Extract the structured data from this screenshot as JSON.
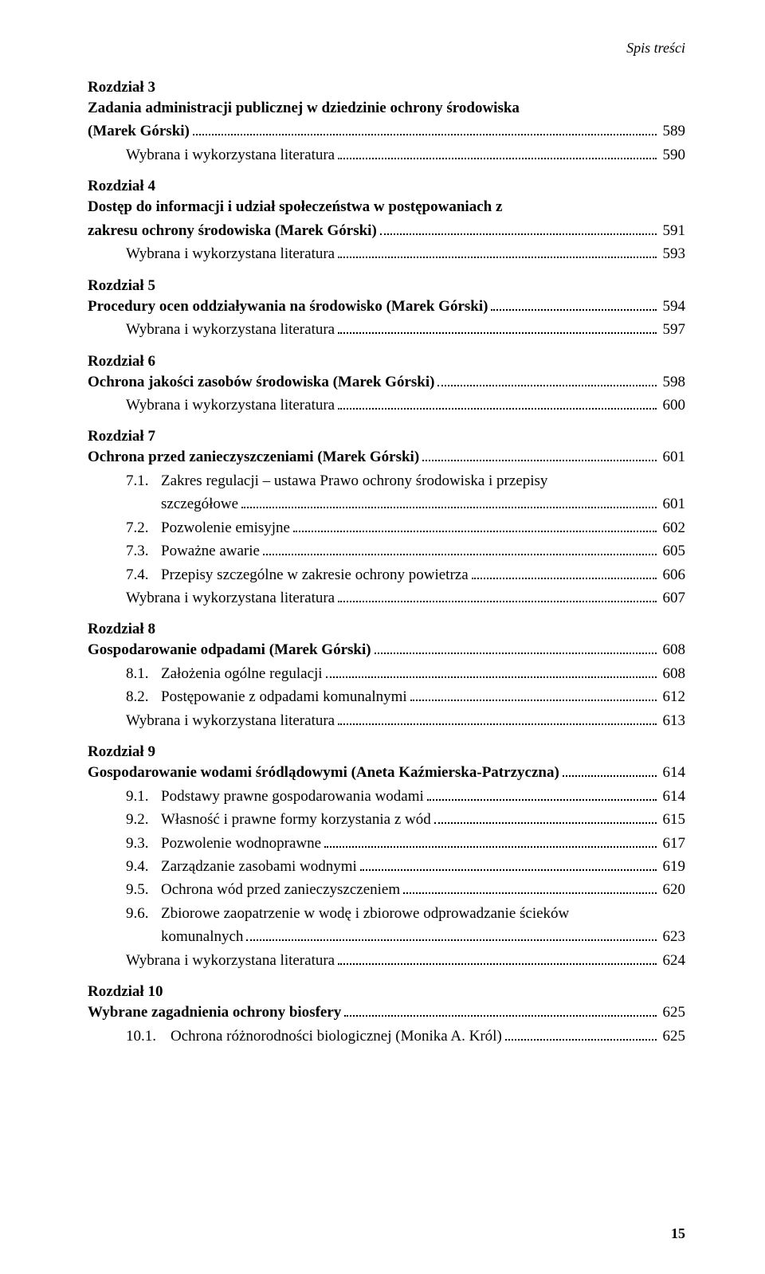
{
  "header": "Spis treści",
  "pageNumber": "15",
  "sections": [
    {
      "chapter": "Rozdział 3",
      "title": "Zadania administracji publicznej w dziedzinie ochrony środowiska (Marek Górski)",
      "titlePage": "589",
      "literature": "Wybrana i wykorzystana literatura",
      "literaturePage": "590"
    },
    {
      "chapter": "Rozdział 4",
      "title": "Dostęp do informacji i udział społeczeństwa w postępowaniach z zakresu ochrony środowiska (Marek Górski)",
      "titlePage": "591",
      "literature": "Wybrana i wykorzystana literatura",
      "literaturePage": "593"
    },
    {
      "chapter": "Rozdział 5",
      "title": "Procedury ocen oddziaływania na środowisko (Marek Górski)",
      "titlePage": "594",
      "literature": "Wybrana i wykorzystana literatura",
      "literaturePage": "597"
    },
    {
      "chapter": "Rozdział 6",
      "title": "Ochrona jakości zasobów środowiska (Marek Górski)",
      "titlePage": "598",
      "literature": "Wybrana i wykorzystana literatura",
      "literaturePage": "600"
    },
    {
      "chapter": "Rozdział 7",
      "title": "Ochrona przed zanieczyszczeniami (Marek Górski)",
      "titlePage": "601",
      "items": [
        {
          "num": "7.1.",
          "text": "Zakres regulacji – ustawa Prawo ochrony środowiska i przepisy szczegółowe",
          "textWrap": [
            "Zakres regulacji – ustawa Prawo ochrony środowiska i przepisy",
            "szczegółowe"
          ],
          "page": "601"
        },
        {
          "num": "7.2.",
          "text": "Pozwolenie emisyjne",
          "page": "602"
        },
        {
          "num": "7.3.",
          "text": "Poważne awarie",
          "page": "605"
        },
        {
          "num": "7.4.",
          "text": "Przepisy szczególne w zakresie ochrony powietrza",
          "page": "606"
        }
      ],
      "literature": "Wybrana i wykorzystana literatura",
      "literaturePage": "607"
    },
    {
      "chapter": "Rozdział 8",
      "title": "Gospodarowanie odpadami (Marek Górski)",
      "titlePage": "608",
      "items": [
        {
          "num": "8.1.",
          "text": "Założenia ogólne regulacji",
          "page": "608"
        },
        {
          "num": "8.2.",
          "text": "Postępowanie z odpadami komunalnymi",
          "page": "612"
        }
      ],
      "literature": "Wybrana i wykorzystana literatura",
      "literaturePage": "613"
    },
    {
      "chapter": "Rozdział 9",
      "title": "Gospodarowanie wodami śródlądowymi (Aneta Kaźmierska-Patrzyczna)",
      "titlePage": "614",
      "items": [
        {
          "num": "9.1.",
          "text": "Podstawy prawne gospodarowania wodami",
          "page": "614"
        },
        {
          "num": "9.2.",
          "text": "Własność i prawne formy korzystania z wód",
          "page": "615"
        },
        {
          "num": "9.3.",
          "text": "Pozwolenie wodnoprawne",
          "page": "617"
        },
        {
          "num": "9.4.",
          "text": "Zarządzanie zasobami wodnymi",
          "page": "619"
        },
        {
          "num": "9.5.",
          "text": "Ochrona wód przed zanieczyszczeniem",
          "page": "620"
        },
        {
          "num": "9.6.",
          "text": "Zbiorowe zaopatrzenie w wodę i zbiorowe odprowadzanie ścieków komunalnych",
          "textWrap": [
            "Zbiorowe zaopatrzenie w wodę i zbiorowe odprowadzanie ścieków",
            "komunalnych"
          ],
          "page": "623"
        }
      ],
      "literature": "Wybrana i wykorzystana literatura",
      "literaturePage": "624"
    },
    {
      "chapter": "Rozdział 10",
      "title": "Wybrane zagadnienia ochrony biosfery",
      "titlePage": "625",
      "items": [
        {
          "num": "10.1.",
          "wide": true,
          "text": "Ochrona różnorodności biologicznej (Monika A. Król)",
          "page": "625"
        }
      ]
    }
  ]
}
